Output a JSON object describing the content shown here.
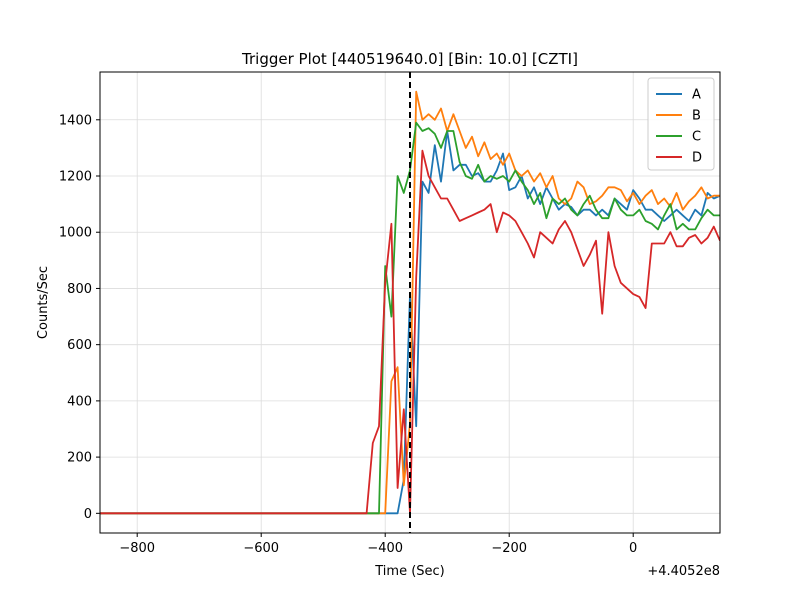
{
  "chart_data": {
    "type": "line",
    "title": "Trigger Plot [440519640.0] [Bin: 10.0] [CZTI]",
    "xlabel": "Time (Sec)",
    "ylabel": "Counts/Sec",
    "x_offset_label": "+4.4052e8",
    "xlim": [
      -860,
      140
    ],
    "ylim": [
      -70,
      1570
    ],
    "xticks": [
      -800,
      -600,
      -400,
      -200,
      0
    ],
    "yticks": [
      0,
      200,
      400,
      600,
      800,
      1000,
      1200,
      1400
    ],
    "grid": true,
    "legend_position": "top-right",
    "trigger_time": -360,
    "series": [
      {
        "name": "A",
        "color": "#1f77b4",
        "x": [
          -860,
          -380,
          -370,
          -360,
          -350,
          -340,
          -330,
          -320,
          -310,
          -300,
          -290,
          -280,
          -270,
          -260,
          -250,
          -240,
          -230,
          -220,
          -210,
          -200,
          -190,
          -180,
          -170,
          -160,
          -150,
          -140,
          -130,
          -120,
          -110,
          -100,
          -90,
          -80,
          -70,
          -60,
          -50,
          -40,
          -30,
          -20,
          -10,
          0,
          10,
          20,
          30,
          40,
          50,
          60,
          70,
          80,
          90,
          100,
          110,
          120,
          130,
          140
        ],
        "y": [
          0,
          0,
          120,
          780,
          310,
          1180,
          1140,
          1310,
          1180,
          1360,
          1220,
          1240,
          1240,
          1200,
          1210,
          1180,
          1180,
          1220,
          1280,
          1150,
          1160,
          1200,
          1120,
          1160,
          1100,
          1160,
          1120,
          1080,
          1100,
          1090,
          1060,
          1080,
          1080,
          1060,
          1080,
          1060,
          1120,
          1100,
          1080,
          1150,
          1120,
          1080,
          1080,
          1060,
          1040,
          1060,
          1080,
          1060,
          1040,
          1080,
          1060,
          1140,
          1120,
          1130
        ]
      },
      {
        "name": "B",
        "color": "#ff7f0e",
        "x": [
          -860,
          -400,
          -390,
          -380,
          -370,
          -360,
          -350,
          -340,
          -330,
          -320,
          -310,
          -300,
          -290,
          -280,
          -270,
          -260,
          -250,
          -240,
          -230,
          -220,
          -210,
          -200,
          -190,
          -180,
          -170,
          -160,
          -150,
          -140,
          -130,
          -120,
          -110,
          -100,
          -90,
          -80,
          -70,
          -60,
          -50,
          -40,
          -30,
          -20,
          -10,
          0,
          10,
          20,
          30,
          40,
          50,
          60,
          70,
          80,
          90,
          100,
          110,
          120,
          130,
          140
        ],
        "y": [
          0,
          0,
          470,
          520,
          100,
          320,
          1500,
          1400,
          1420,
          1400,
          1440,
          1360,
          1420,
          1360,
          1300,
          1340,
          1270,
          1320,
          1260,
          1280,
          1240,
          1280,
          1220,
          1200,
          1220,
          1180,
          1210,
          1160,
          1200,
          1120,
          1100,
          1120,
          1180,
          1160,
          1100,
          1110,
          1130,
          1160,
          1160,
          1150,
          1110,
          1140,
          1100,
          1130,
          1150,
          1100,
          1120,
          1090,
          1140,
          1080,
          1110,
          1130,
          1160,
          1120,
          1130,
          1130
        ]
      },
      {
        "name": "C",
        "color": "#2ca02c",
        "x": [
          -860,
          -410,
          -400,
          -390,
          -380,
          -370,
          -360,
          -350,
          -340,
          -330,
          -320,
          -310,
          -300,
          -290,
          -280,
          -270,
          -260,
          -250,
          -240,
          -230,
          -220,
          -210,
          -200,
          -190,
          -180,
          -170,
          -160,
          -150,
          -140,
          -130,
          -120,
          -110,
          -100,
          -90,
          -80,
          -70,
          -60,
          -50,
          -40,
          -30,
          -20,
          -10,
          0,
          10,
          20,
          30,
          40,
          50,
          60,
          70,
          80,
          90,
          100,
          110,
          120,
          130,
          140
        ],
        "y": [
          0,
          0,
          880,
          700,
          1200,
          1140,
          1220,
          1390,
          1360,
          1370,
          1350,
          1300,
          1360,
          1360,
          1250,
          1200,
          1190,
          1240,
          1180,
          1200,
          1190,
          1200,
          1180,
          1220,
          1180,
          1150,
          1100,
          1140,
          1050,
          1120,
          1100,
          1120,
          1080,
          1060,
          1100,
          1130,
          1080,
          1050,
          1050,
          1120,
          1080,
          1060,
          1060,
          1080,
          1040,
          1030,
          1010,
          1060,
          1100,
          1010,
          1030,
          1010,
          1010,
          1050,
          1080,
          1060,
          1060
        ]
      },
      {
        "name": "D",
        "color": "#d62728",
        "x": [
          -860,
          -430,
          -420,
          -410,
          -400,
          -390,
          -380,
          -370,
          -360,
          -350,
          -340,
          -330,
          -320,
          -310,
          -300,
          -290,
          -280,
          -270,
          -260,
          -250,
          -240,
          -230,
          -220,
          -210,
          -200,
          -190,
          -180,
          -170,
          -160,
          -150,
          -140,
          -130,
          -120,
          -110,
          -100,
          -90,
          -80,
          -70,
          -60,
          -50,
          -40,
          -30,
          -20,
          -10,
          0,
          10,
          20,
          30,
          40,
          50,
          60,
          70,
          80,
          90,
          100,
          110,
          120,
          130,
          140
        ],
        "y": [
          0,
          0,
          250,
          310,
          820,
          1030,
          90,
          370,
          0,
          840,
          1290,
          1200,
          1160,
          1120,
          1120,
          1080,
          1040,
          1050,
          1060,
          1070,
          1080,
          1100,
          1000,
          1070,
          1060,
          1040,
          1000,
          960,
          910,
          1000,
          980,
          960,
          1010,
          1040,
          1000,
          940,
          880,
          920,
          970,
          710,
          1000,
          880,
          820,
          800,
          780,
          770,
          730,
          960,
          960,
          960,
          1000,
          950,
          950,
          980,
          990,
          960,
          980,
          1020,
          970
        ]
      }
    ]
  }
}
